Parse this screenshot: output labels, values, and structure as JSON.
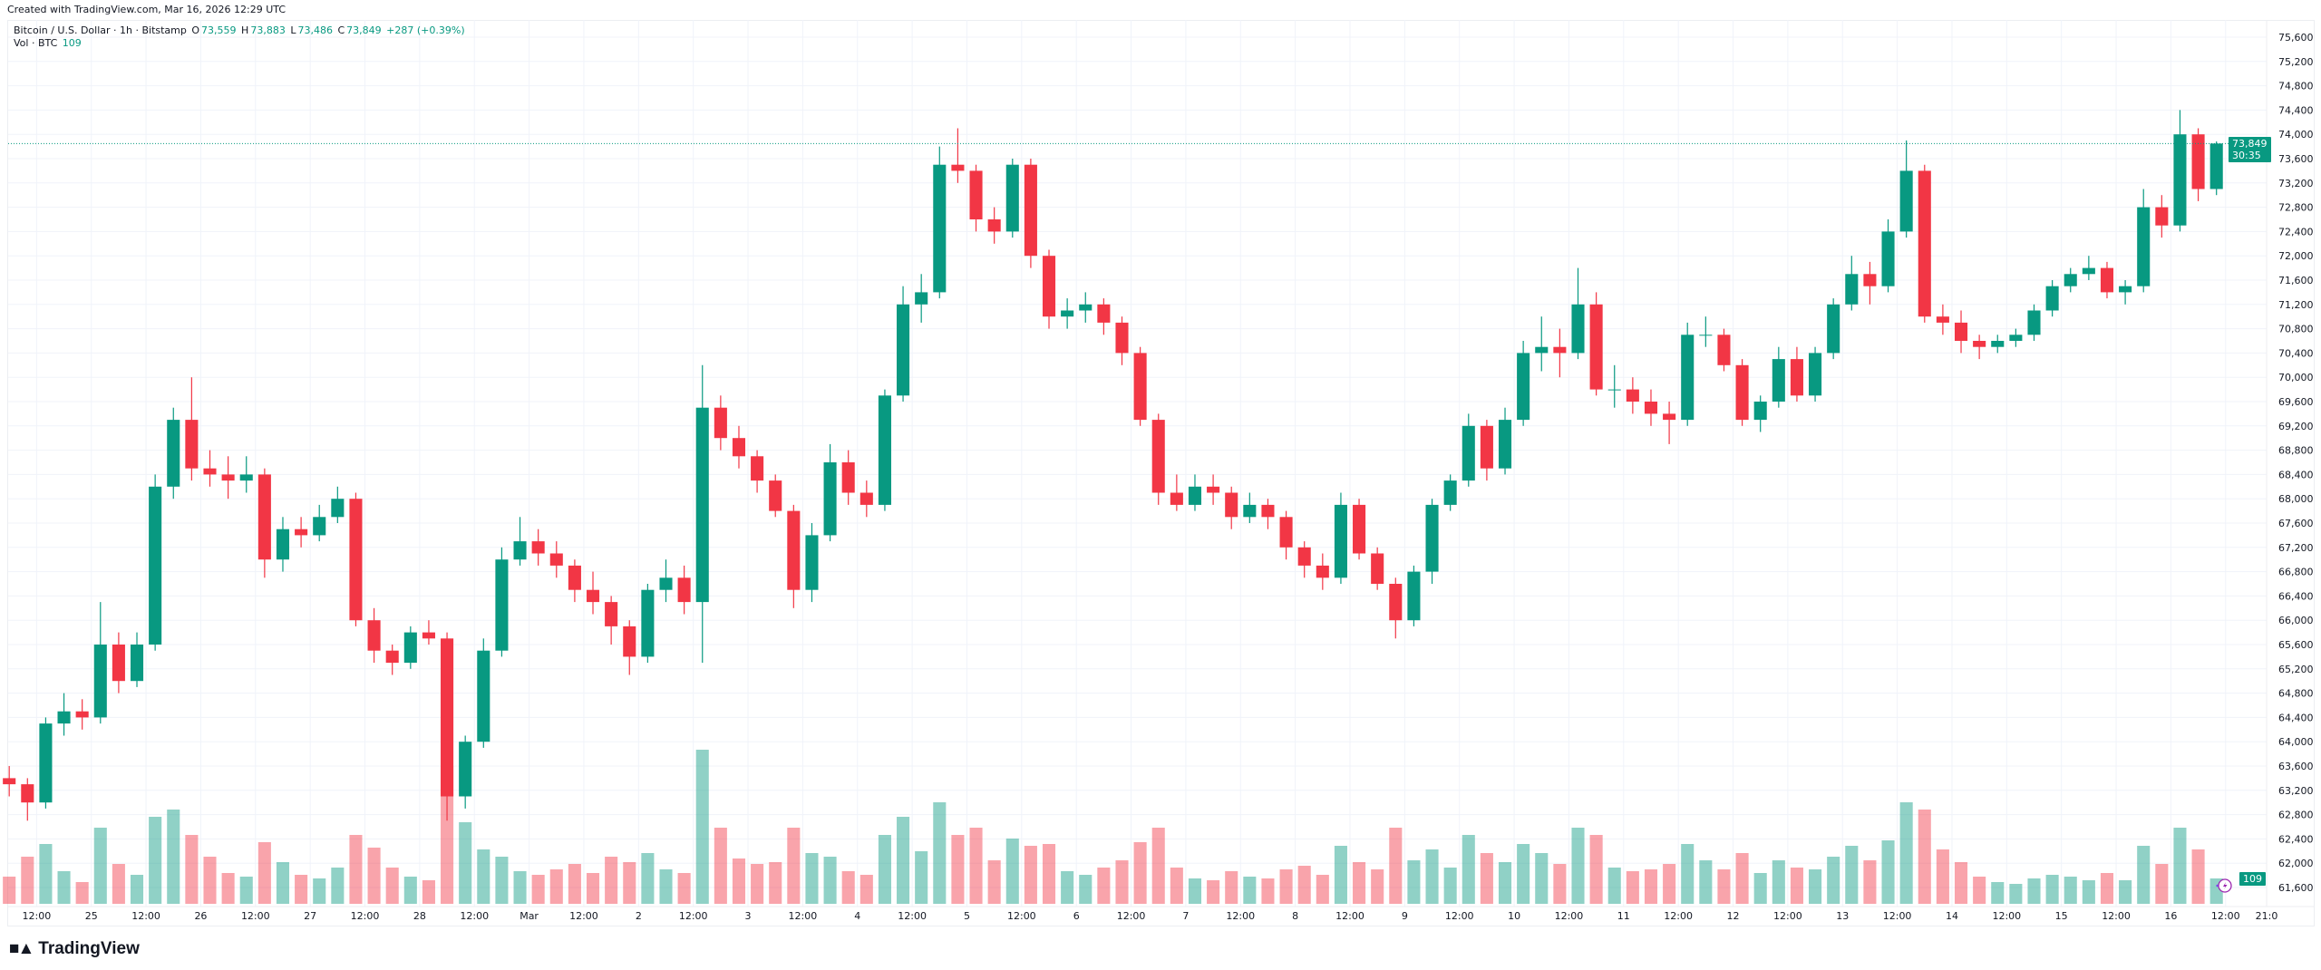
{
  "header": {
    "created": "Created with TradingView.com, Mar 16, 2026 12:29 UTC"
  },
  "legend": {
    "symbol": "Bitcoin / U.S. Dollar · 1h · Bitstamp",
    "o_label": "O",
    "o": "73,559",
    "h_label": "H",
    "h": "73,883",
    "l_label": "L",
    "l": "73,486",
    "c_label": "C",
    "c": "73,849",
    "change": "+287 (+0.39%)",
    "vol_label": "Vol · BTC",
    "vol": "109"
  },
  "price_tag": {
    "price": "73,849",
    "countdown": "30:35"
  },
  "volume_tag": "109",
  "brand": "TradingView",
  "colors": {
    "up": "#089981",
    "down": "#f23645",
    "grid": "#f0f3fa",
    "last_price_line": "#089981"
  },
  "chart_data": {
    "type": "candlestick",
    "series_note_visible": "Bitcoin / U.S. Dollar",
    "x_start": "2026-02-24T04:00Z",
    "x_step_hours": 4,
    "last_price": 73849,
    "y_ticks": [
      61600,
      62000,
      62400,
      62800,
      63200,
      63600,
      64000,
      64400,
      64800,
      65200,
      65600,
      66000,
      66400,
      66800,
      67200,
      67600,
      68000,
      68400,
      68800,
      69200,
      69600,
      70000,
      70400,
      70800,
      71200,
      71600,
      72000,
      72400,
      72800,
      73200,
      73600,
      74000,
      74400,
      74800,
      75200,
      75600
    ],
    "x_ticks": [
      {
        "hour": 12,
        "label": "12:00"
      },
      {
        "hour": 24,
        "label": "25"
      },
      {
        "hour": 36,
        "label": "12:00"
      },
      {
        "hour": 48,
        "label": "26"
      },
      {
        "hour": 60,
        "label": "12:00"
      },
      {
        "hour": 72,
        "label": "27"
      },
      {
        "hour": 84,
        "label": "12:00"
      },
      {
        "hour": 96,
        "label": "28"
      },
      {
        "hour": 108,
        "label": "12:00"
      },
      {
        "hour": 120,
        "label": "Mar"
      },
      {
        "hour": 132,
        "label": "12:00"
      },
      {
        "hour": 144,
        "label": "2"
      },
      {
        "hour": 156,
        "label": "12:00"
      },
      {
        "hour": 168,
        "label": "3"
      },
      {
        "hour": 180,
        "label": "12:00"
      },
      {
        "hour": 192,
        "label": "4"
      },
      {
        "hour": 204,
        "label": "12:00"
      },
      {
        "hour": 216,
        "label": "5"
      },
      {
        "hour": 228,
        "label": "12:00"
      },
      {
        "hour": 240,
        "label": "6"
      },
      {
        "hour": 252,
        "label": "12:00"
      },
      {
        "hour": 264,
        "label": "7"
      },
      {
        "hour": 276,
        "label": "12:00"
      },
      {
        "hour": 288,
        "label": "8"
      },
      {
        "hour": 300,
        "label": "12:00"
      },
      {
        "hour": 312,
        "label": "9"
      },
      {
        "hour": 324,
        "label": "12:00"
      },
      {
        "hour": 336,
        "label": "10"
      },
      {
        "hour": 348,
        "label": "12:00"
      },
      {
        "hour": 360,
        "label": "11"
      },
      {
        "hour": 372,
        "label": "12:00"
      },
      {
        "hour": 384,
        "label": "12"
      },
      {
        "hour": 396,
        "label": "12:00"
      },
      {
        "hour": 408,
        "label": "13"
      },
      {
        "hour": 420,
        "label": "12:00"
      },
      {
        "hour": 432,
        "label": "14"
      },
      {
        "hour": 444,
        "label": "12:00"
      },
      {
        "hour": 456,
        "label": "15"
      },
      {
        "hour": 468,
        "label": "12:00"
      },
      {
        "hour": 480,
        "label": "16"
      },
      {
        "hour": 492,
        "label": "12:00"
      },
      {
        "hour": 501,
        "label": "21:0"
      }
    ],
    "ohlc": [
      [
        63400,
        63600,
        63100,
        63300
      ],
      [
        63300,
        63400,
        62700,
        63000
      ],
      [
        63000,
        64400,
        62900,
        64300
      ],
      [
        64300,
        64800,
        64100,
        64500
      ],
      [
        64500,
        64700,
        64200,
        64400
      ],
      [
        64400,
        66300,
        64300,
        65600
      ],
      [
        65600,
        65800,
        64800,
        65000
      ],
      [
        65000,
        65800,
        64900,
        65600
      ],
      [
        65600,
        68400,
        65500,
        68200
      ],
      [
        68200,
        69500,
        68000,
        69300
      ],
      [
        69300,
        70000,
        68300,
        68500
      ],
      [
        68500,
        68800,
        68200,
        68400
      ],
      [
        68400,
        68700,
        68000,
        68300
      ],
      [
        68300,
        68700,
        68100,
        68400
      ],
      [
        68400,
        68500,
        66700,
        67000
      ],
      [
        67000,
        67700,
        66800,
        67500
      ],
      [
        67500,
        67700,
        67200,
        67400
      ],
      [
        67400,
        67900,
        67300,
        67700
      ],
      [
        67700,
        68200,
        67600,
        68000
      ],
      [
        68000,
        68100,
        65900,
        66000
      ],
      [
        66000,
        66200,
        65300,
        65500
      ],
      [
        65500,
        65600,
        65100,
        65300
      ],
      [
        65300,
        65900,
        65200,
        65800
      ],
      [
        65800,
        66000,
        65600,
        65700
      ],
      [
        65700,
        65800,
        62700,
        63100
      ],
      [
        63100,
        64100,
        62900,
        64000
      ],
      [
        64000,
        65700,
        63900,
        65500
      ],
      [
        65500,
        67200,
        65400,
        67000
      ],
      [
        67000,
        67700,
        66900,
        67300
      ],
      [
        67300,
        67500,
        66900,
        67100
      ],
      [
        67100,
        67300,
        66700,
        66900
      ],
      [
        66900,
        67000,
        66300,
        66500
      ],
      [
        66500,
        66800,
        66100,
        66300
      ],
      [
        66300,
        66400,
        65600,
        65900
      ],
      [
        65900,
        66000,
        65100,
        65400
      ],
      [
        65400,
        66600,
        65300,
        66500
      ],
      [
        66500,
        67000,
        66300,
        66700
      ],
      [
        66700,
        66900,
        66100,
        66300
      ],
      [
        66300,
        70200,
        65300,
        69500
      ],
      [
        69500,
        69700,
        68800,
        69000
      ],
      [
        69000,
        69200,
        68500,
        68700
      ],
      [
        68700,
        68800,
        68100,
        68300
      ],
      [
        68300,
        68400,
        67700,
        67800
      ],
      [
        67800,
        67900,
        66200,
        66500
      ],
      [
        66500,
        67600,
        66300,
        67400
      ],
      [
        67400,
        68900,
        67300,
        68600
      ],
      [
        68600,
        68800,
        67900,
        68100
      ],
      [
        68100,
        68300,
        67700,
        67900
      ],
      [
        67900,
        69800,
        67800,
        69700
      ],
      [
        69700,
        71500,
        69600,
        71200
      ],
      [
        71200,
        71700,
        70900,
        71400
      ],
      [
        71400,
        73800,
        71300,
        73500
      ],
      [
        73500,
        74100,
        73200,
        73400
      ],
      [
        73400,
        73500,
        72400,
        72600
      ],
      [
        72600,
        72800,
        72200,
        72400
      ],
      [
        72400,
        73600,
        72300,
        73500
      ],
      [
        73500,
        73600,
        71800,
        72000
      ],
      [
        72000,
        72100,
        70800,
        71000
      ],
      [
        71000,
        71300,
        70800,
        71100
      ],
      [
        71100,
        71400,
        70900,
        71200
      ],
      [
        71200,
        71300,
        70700,
        70900
      ],
      [
        70900,
        71000,
        70200,
        70400
      ],
      [
        70400,
        70500,
        69200,
        69300
      ],
      [
        69300,
        69400,
        67900,
        68100
      ],
      [
        68100,
        68400,
        67800,
        67900
      ],
      [
        67900,
        68400,
        67800,
        68200
      ],
      [
        68200,
        68400,
        67900,
        68100
      ],
      [
        68100,
        68200,
        67500,
        67700
      ],
      [
        67700,
        68100,
        67600,
        67900
      ],
      [
        67900,
        68000,
        67500,
        67700
      ],
      [
        67700,
        67800,
        67000,
        67200
      ],
      [
        67200,
        67300,
        66700,
        66900
      ],
      [
        66900,
        67100,
        66500,
        66700
      ],
      [
        66700,
        68100,
        66600,
        67900
      ],
      [
        67900,
        68000,
        67000,
        67100
      ],
      [
        67100,
        67200,
        66500,
        66600
      ],
      [
        66600,
        66700,
        65700,
        66000
      ],
      [
        66000,
        66900,
        65900,
        66800
      ],
      [
        66800,
        68000,
        66600,
        67900
      ],
      [
        67900,
        68400,
        67800,
        68300
      ],
      [
        68300,
        69400,
        68200,
        69200
      ],
      [
        69200,
        69300,
        68300,
        68500
      ],
      [
        68500,
        69500,
        68400,
        69300
      ],
      [
        69300,
        70600,
        69200,
        70400
      ],
      [
        70400,
        71000,
        70100,
        70500
      ],
      [
        70500,
        70800,
        70000,
        70400
      ],
      [
        70400,
        71800,
        70300,
        71200
      ],
      [
        71200,
        71400,
        69700,
        69800
      ],
      [
        69800,
        70200,
        69500,
        69800
      ],
      [
        69800,
        70000,
        69400,
        69600
      ],
      [
        69600,
        69800,
        69200,
        69400
      ],
      [
        69400,
        69600,
        68900,
        69300
      ],
      [
        69300,
        70900,
        69200,
        70700
      ],
      [
        70700,
        71000,
        70500,
        70700
      ],
      [
        70700,
        70800,
        70100,
        70200
      ],
      [
        70200,
        70300,
        69200,
        69300
      ],
      [
        69300,
        69700,
        69100,
        69600
      ],
      [
        69600,
        70500,
        69500,
        70300
      ],
      [
        70300,
        70500,
        69600,
        69700
      ],
      [
        69700,
        70500,
        69600,
        70400
      ],
      [
        70400,
        71300,
        70300,
        71200
      ],
      [
        71200,
        72000,
        71100,
        71700
      ],
      [
        71700,
        71900,
        71200,
        71500
      ],
      [
        71500,
        72600,
        71400,
        72400
      ],
      [
        72400,
        73900,
        72300,
        73400
      ],
      [
        73400,
        73500,
        70900,
        71000
      ],
      [
        71000,
        71200,
        70700,
        70900
      ],
      [
        70900,
        71100,
        70400,
        70600
      ],
      [
        70600,
        70700,
        70300,
        70500
      ],
      [
        70500,
        70700,
        70400,
        70600
      ],
      [
        70600,
        70800,
        70500,
        70700
      ],
      [
        70700,
        71200,
        70600,
        71100
      ],
      [
        71100,
        71600,
        71000,
        71500
      ],
      [
        71500,
        71800,
        71400,
        71700
      ],
      [
        71700,
        72000,
        71600,
        71800
      ],
      [
        71800,
        71900,
        71300,
        71400
      ],
      [
        71400,
        71600,
        71200,
        71500
      ],
      [
        71500,
        73100,
        71400,
        72800
      ],
      [
        72800,
        73000,
        72300,
        72500
      ],
      [
        72500,
        74400,
        72400,
        74000
      ],
      [
        74000,
        74100,
        72900,
        73100
      ],
      [
        73100,
        73883,
        73000,
        73849
      ]
    ],
    "volume": [
      150,
      260,
      330,
      180,
      120,
      420,
      220,
      160,
      480,
      520,
      380,
      260,
      170,
      150,
      340,
      230,
      160,
      140,
      200,
      380,
      310,
      200,
      150,
      130,
      760,
      450,
      300,
      260,
      180,
      160,
      190,
      220,
      170,
      260,
      230,
      280,
      190,
      170,
      850,
      420,
      250,
      220,
      230,
      420,
      280,
      260,
      180,
      160,
      380,
      480,
      290,
      560,
      380,
      420,
      240,
      360,
      320,
      330,
      180,
      160,
      200,
      240,
      340,
      420,
      200,
      140,
      130,
      180,
      150,
      140,
      190,
      210,
      160,
      320,
      230,
      190,
      420,
      240,
      300,
      200,
      380,
      280,
      230,
      330,
      280,
      220,
      420,
      380,
      200,
      180,
      190,
      220,
      330,
      240,
      190,
      280,
      170,
      240,
      200,
      190,
      260,
      320,
      240,
      350,
      560,
      520,
      300,
      230,
      150,
      120,
      110,
      140,
      160,
      150,
      130,
      170,
      130,
      320,
      220,
      420,
      300,
      140
    ]
  }
}
